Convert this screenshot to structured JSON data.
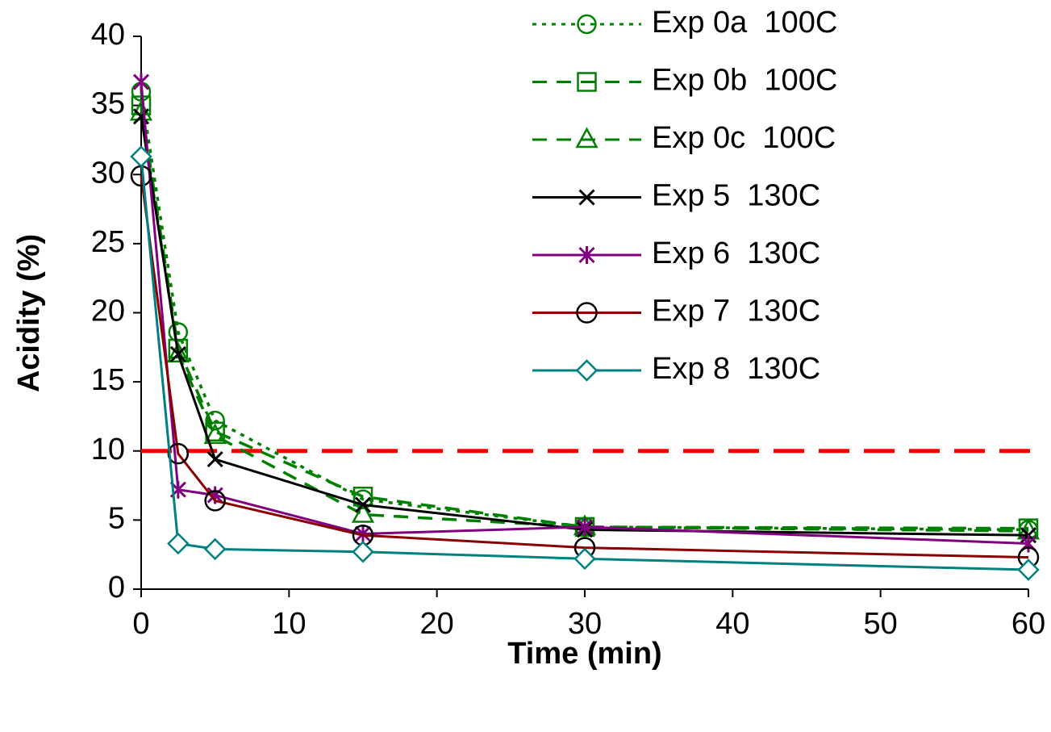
{
  "chart_data": {
    "type": "line",
    "title": "",
    "xlabel": "Time (min)",
    "ylabel": "Acidity (%)",
    "xlim": [
      0,
      60
    ],
    "ylim": [
      0,
      40
    ],
    "xticks": [
      0,
      10,
      20,
      30,
      40,
      50,
      60
    ],
    "yticks": [
      0,
      5,
      10,
      15,
      20,
      25,
      30,
      35,
      40
    ],
    "grid": false,
    "legend_position": "top-right",
    "threshold": {
      "y": 10,
      "color": "#ff0000",
      "style": "dashed"
    },
    "series": [
      {
        "name": "Exp 0a  100C",
        "color": "#008000",
        "dash": "dotted",
        "marker": "circle-open",
        "x": [
          0,
          2.5,
          5,
          15,
          30,
          60
        ],
        "y": [
          36,
          18.6,
          12.2,
          6.5,
          4.5,
          4.3
        ]
      },
      {
        "name": "Exp 0b  100C",
        "color": "#008000",
        "dash": "dashed",
        "marker": "square-open",
        "x": [
          0,
          2.5,
          5,
          15,
          30,
          60
        ],
        "y": [
          35,
          17.4,
          11.4,
          6.7,
          4.5,
          4.4
        ]
      },
      {
        "name": "Exp 0c  100C",
        "color": "#008000",
        "dash": "dashed",
        "marker": "triangle-open",
        "x": [
          0,
          2.5,
          5,
          15,
          30,
          60
        ],
        "y": [
          34.5,
          17,
          11.1,
          5.4,
          4.5,
          4.2
        ]
      },
      {
        "name": "Exp 5  130C",
        "color": "#000000",
        "dash": "solid",
        "marker": "x",
        "x": [
          0,
          2.5,
          5,
          15,
          30,
          60
        ],
        "y": [
          34.2,
          17,
          9.4,
          6.1,
          4.3,
          3.9
        ]
      },
      {
        "name": "Exp 6  130C",
        "color": "#800080",
        "dash": "solid",
        "marker": "star",
        "x": [
          0,
          2.5,
          5,
          15,
          30,
          60
        ],
        "y": [
          36.7,
          7.2,
          6.8,
          4,
          4.5,
          3.3
        ]
      },
      {
        "name": "Exp 7  130C",
        "color": "#8b0000",
        "dash": "solid",
        "marker": "circle-open-black",
        "x": [
          0,
          2.5,
          5,
          15,
          30,
          60
        ],
        "y": [
          29.9,
          9.8,
          6.4,
          3.9,
          3,
          2.3
        ]
      },
      {
        "name": "Exp 8  130C",
        "color": "#008080",
        "dash": "solid",
        "marker": "diamond-open",
        "x": [
          0,
          2.5,
          5,
          15,
          30,
          60
        ],
        "y": [
          31.3,
          3.3,
          2.9,
          2.7,
          2.2,
          1.4
        ]
      }
    ]
  }
}
